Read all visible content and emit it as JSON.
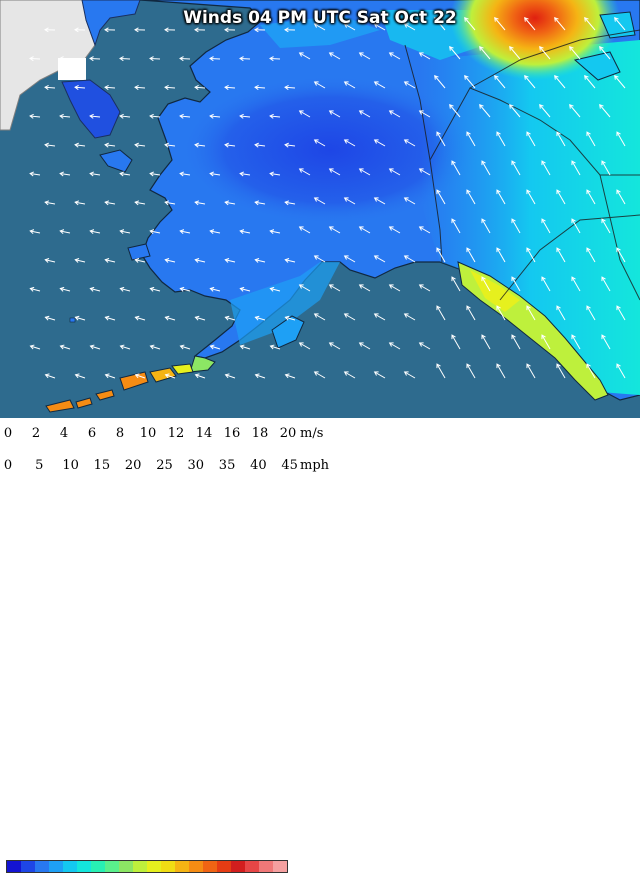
{
  "title": "Winds 04 PM UTC Sat Oct 22",
  "legend": {
    "ms_unit": "m/s",
    "mph_unit": "mph",
    "ms_ticks": [
      "0",
      "2",
      "4",
      "6",
      "8",
      "10",
      "12",
      "14",
      "16",
      "18",
      "20"
    ],
    "mph_ticks": [
      "0",
      "5",
      "10",
      "15",
      "20",
      "25",
      "30",
      "35",
      "40",
      "45"
    ],
    "colors": [
      "#1414d2",
      "#1e46e6",
      "#2878f0",
      "#1ea0f5",
      "#14c8f0",
      "#14e6dc",
      "#28f0b4",
      "#5af08c",
      "#8ce664",
      "#bef03c",
      "#e6f01e",
      "#f0dc14",
      "#f5b414",
      "#f58c14",
      "#f06414",
      "#e63c14",
      "#d21e1e",
      "#e64646",
      "#f07878",
      "#f5a0a0"
    ]
  },
  "colors": {
    "water": "#2e6b8e",
    "asia_land": "#e8e8e8",
    "arrow": "#ffffff"
  }
}
